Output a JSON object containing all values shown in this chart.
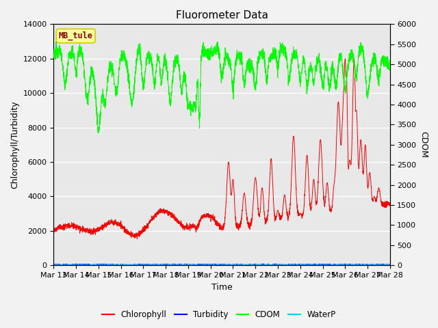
{
  "title": "Fluorometer Data",
  "xlabel": "Time",
  "ylabel_left": "Chlorophyll/Turbidity",
  "ylabel_right": "CDOM",
  "ylim_left": [
    0,
    14000
  ],
  "ylim_right": [
    0,
    6000
  ],
  "yticks_left": [
    0,
    2000,
    4000,
    6000,
    8000,
    10000,
    12000,
    14000
  ],
  "yticks_right": [
    0,
    500,
    1000,
    1500,
    2000,
    2500,
    3000,
    3500,
    4000,
    4500,
    5000,
    5500,
    6000
  ],
  "xtick_labels": [
    "Mar 13",
    "Mar 14",
    "Mar 15",
    "Mar 16",
    "Mar 17",
    "Mar 18",
    "Mar 19",
    "Mar 20",
    "Mar 21",
    "Mar 22",
    "Mar 23",
    "Mar 24",
    "Mar 25",
    "Mar 26",
    "Mar 27",
    "Mar 28"
  ],
  "annotation_text": "MB_tule",
  "annotation_color": "#8B0000",
  "annotation_bg": "#FFFF99",
  "annotation_edge": "#CCCC00",
  "colors": {
    "chlorophyll": "#FF0000",
    "turbidity": "#0000FF",
    "cdom": "#00FF00",
    "waterp": "#00CCFF"
  },
  "legend_labels": [
    "Chlorophyll",
    "Turbidity",
    "CDOM",
    "WaterP"
  ],
  "plot_bg_color": "#E8E8E8",
  "fig_bg_color": "#F2F2F2",
  "grid_color": "#FFFFFF",
  "title_fontsize": 11,
  "axis_fontsize": 9,
  "tick_fontsize": 8
}
